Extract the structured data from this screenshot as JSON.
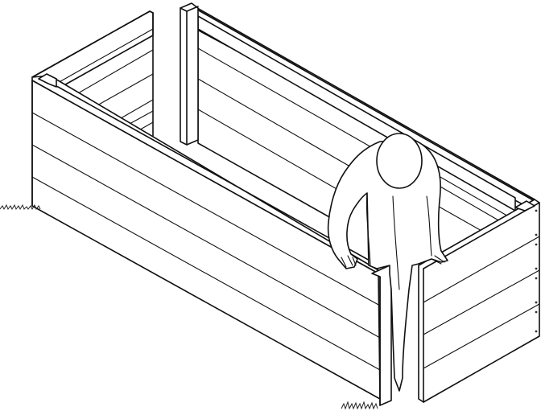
{
  "illustration": {
    "subject": "raised-bed-assembly",
    "panel_count": 4,
    "boards_per_panel": 4,
    "line_color": "#111111",
    "fill_color": "#ffffff"
  }
}
